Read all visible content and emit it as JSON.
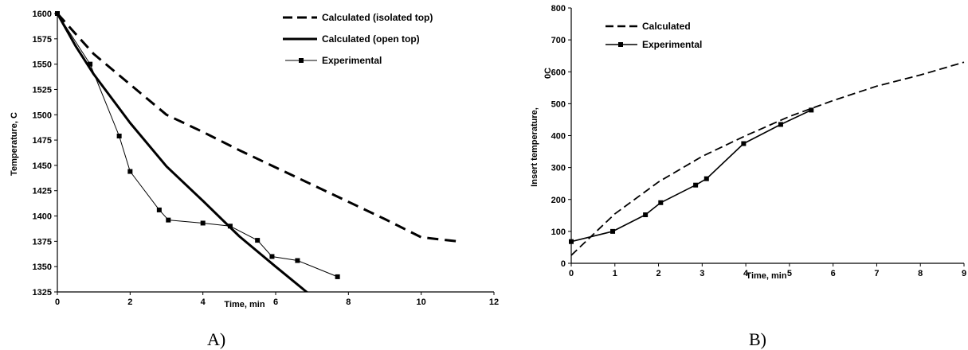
{
  "chart_data": [
    {
      "type": "line",
      "panel_label": "A)",
      "xlabel": "Time, min",
      "ylabel": "Temperature, C",
      "xlim": [
        0,
        12
      ],
      "ylim": [
        1325,
        1600
      ],
      "xticks": [
        "0",
        "2",
        "4",
        "6",
        "8",
        "10",
        "12"
      ],
      "yticks": [
        "1325",
        "1350",
        "1375",
        "1400",
        "1425",
        "1450",
        "1475",
        "1500",
        "1525",
        "1550",
        "1575",
        "1600"
      ],
      "grid": false,
      "legend_position": "top-right",
      "series": [
        {
          "name": "Calculated (isolated top)",
          "style": "dashed-thick",
          "x": [
            0,
            0.5,
            1,
            2,
            3,
            4,
            5,
            6,
            7,
            8,
            9,
            10,
            11
          ],
          "y": [
            1600,
            1580,
            1560,
            1530,
            1500,
            1483,
            1465,
            1448,
            1431,
            1414,
            1397,
            1379,
            1375
          ]
        },
        {
          "name": "Calculated (open top)",
          "style": "solid-thick",
          "x": [
            0,
            0.5,
            1,
            2,
            3,
            4,
            5,
            6,
            6.95
          ],
          "y": [
            1600,
            1568,
            1540,
            1492,
            1449,
            1415,
            1380,
            1350,
            1322
          ]
        },
        {
          "name": "Experimental",
          "style": "solid-thin-square",
          "x": [
            0,
            0.9,
            1.7,
            2.0,
            2.8,
            3.05,
            4.0,
            4.75,
            5.5,
            5.9,
            6.6,
            7.7
          ],
          "y": [
            1600,
            1550,
            1479,
            1444,
            1406,
            1396,
            1393,
            1390,
            1376,
            1360,
            1356,
            1340
          ]
        }
      ]
    },
    {
      "type": "line",
      "panel_label": "B)",
      "xlabel": "Time, min",
      "ylabel": "Insert  temperature,",
      "ylabel_unit": "0C",
      "xlim": [
        0,
        9
      ],
      "ylim": [
        0,
        800
      ],
      "xticks": [
        "0",
        "1",
        "2",
        "3",
        "4",
        "5",
        "6",
        "7",
        "8",
        "9"
      ],
      "yticks": [
        "0",
        "100",
        "200",
        "300",
        "400",
        "500",
        "600",
        "700",
        "800"
      ],
      "grid": false,
      "legend_position": "top-left",
      "series": [
        {
          "name": "Calculated",
          "style": "dashed",
          "x": [
            0,
            0.5,
            1,
            2,
            3,
            4,
            5,
            6,
            7,
            8,
            9
          ],
          "y": [
            25,
            90,
            155,
            255,
            335,
            400,
            460,
            510,
            555,
            590,
            630
          ]
        },
        {
          "name": "Experimental",
          "style": "solid-square",
          "x": [
            0,
            0.95,
            1.7,
            2.05,
            2.85,
            3.1,
            3.95,
            4.8,
            5.5
          ],
          "y": [
            68,
            100,
            152,
            190,
            245,
            265,
            375,
            435,
            480
          ]
        }
      ]
    }
  ]
}
